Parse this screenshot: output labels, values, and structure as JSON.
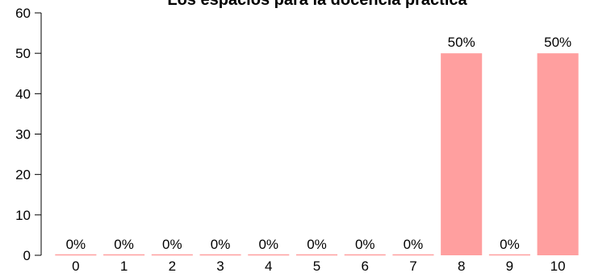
{
  "chart_data": {
    "type": "bar",
    "title": "Los espacios para la docencia práctica",
    "xlabel": "",
    "ylabel": "",
    "categories": [
      "0",
      "1",
      "2",
      "3",
      "4",
      "5",
      "6",
      "7",
      "8",
      "9",
      "10"
    ],
    "values": [
      0,
      0,
      0,
      0,
      0,
      0,
      0,
      0,
      50,
      0,
      50
    ],
    "data_labels": [
      "0%",
      "0%",
      "0%",
      "0%",
      "0%",
      "0%",
      "0%",
      "0%",
      "50%",
      "0%",
      "50%"
    ],
    "ylim": [
      0,
      60
    ],
    "yticks": [
      0,
      10,
      20,
      30,
      40,
      50,
      60
    ],
    "grid": false,
    "bar_color": "#FF9F9F"
  }
}
